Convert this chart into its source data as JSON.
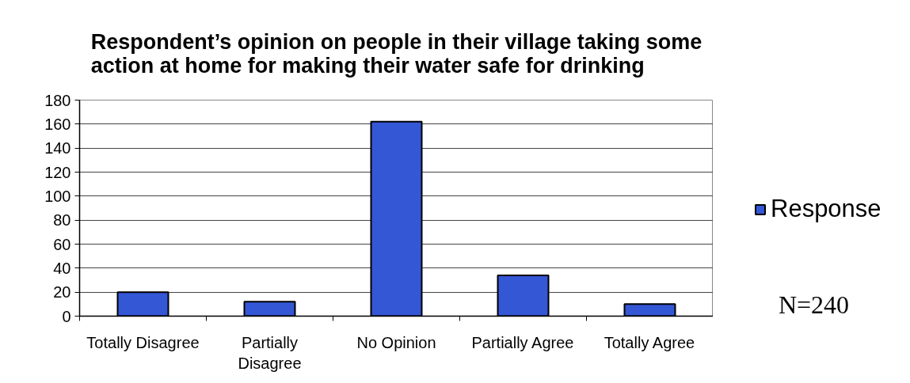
{
  "chart_data": {
    "type": "bar",
    "title": "Respondent’s opinion on people in their village taking some action at home for making their water safe for drinking",
    "categories": [
      "Totally Disagree",
      "Partially Disagree",
      "No Opinion",
      "Partially Agree",
      "Totally Agree"
    ],
    "series": [
      {
        "name": "Response",
        "color": "#3457d5",
        "values": [
          20,
          12,
          162,
          34,
          10
        ]
      }
    ],
    "ylim": [
      0,
      180
    ],
    "yticks": [
      0,
      20,
      40,
      60,
      80,
      100,
      120,
      140,
      160,
      180
    ],
    "grid": "y",
    "legend": "right",
    "annotations": [
      "N=240"
    ]
  }
}
